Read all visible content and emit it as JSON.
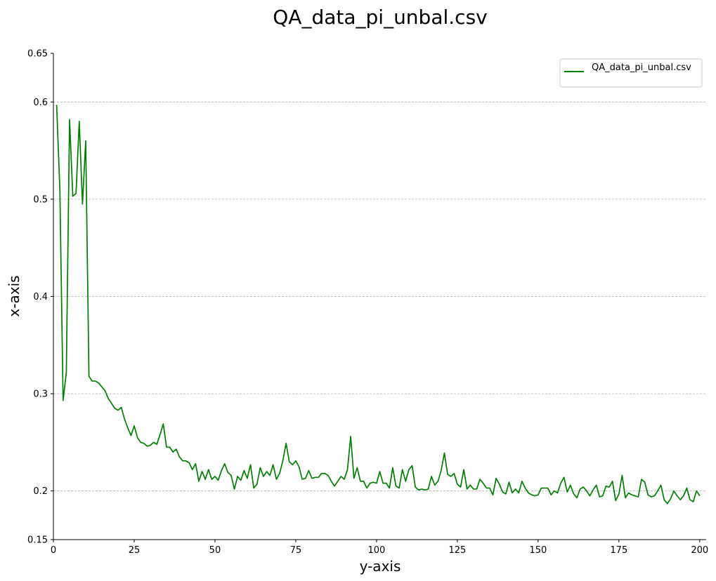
{
  "chart_data": {
    "type": "line",
    "title": "QA_data_pi_unbal.csv",
    "xlabel": "y-axis",
    "ylabel": "x-axis",
    "xlim": [
      0,
      202
    ],
    "ylim": [
      0.15,
      0.65
    ],
    "x_ticks": [
      0,
      25,
      50,
      75,
      100,
      125,
      150,
      175,
      200
    ],
    "x_tick_labels": [
      "0",
      "25",
      "50",
      "75",
      "100",
      "125",
      "150",
      "175",
      "200"
    ],
    "y_ticks": [
      0.15,
      0.2,
      0.3,
      0.4,
      0.5,
      0.6,
      0.65
    ],
    "y_tick_labels": [
      "0.15",
      "0.2",
      "0.3",
      "0.4",
      "0.5",
      "0.6",
      "0.65"
    ],
    "grid": "horizontal-dashed",
    "legend_position": "top-right",
    "colors": {
      "line": "#008000",
      "grid": "#b0b0b0",
      "axis": "#000000"
    },
    "series": [
      {
        "name": "QA_data_pi_unbal.csv",
        "x": [
          1,
          2,
          3,
          4,
          5,
          6,
          7,
          8,
          9,
          10,
          11,
          12,
          13,
          14,
          15,
          16,
          17,
          18,
          19,
          20,
          21,
          22,
          23,
          24,
          25,
          26,
          27,
          28,
          29,
          30,
          31,
          32,
          33,
          34,
          35,
          36,
          37,
          38,
          39,
          40,
          41,
          42,
          43,
          44,
          45,
          46,
          47,
          48,
          49,
          50,
          51,
          52,
          53,
          54,
          55,
          56,
          57,
          58,
          59,
          60,
          61,
          62,
          63,
          64,
          65,
          66,
          67,
          68,
          69,
          70,
          71,
          72,
          73,
          74,
          75,
          76,
          77,
          78,
          79,
          80,
          81,
          82,
          83,
          84,
          85,
          86,
          87,
          88,
          89,
          90,
          91,
          92,
          93,
          94,
          95,
          96,
          97,
          98,
          99,
          100,
          101,
          102,
          103,
          104,
          105,
          106,
          107,
          108,
          109,
          110,
          111,
          112,
          113,
          114,
          115,
          116,
          117,
          118,
          119,
          120,
          121,
          122,
          123,
          124,
          125,
          126,
          127,
          128,
          129,
          130,
          131,
          132,
          133,
          134,
          135,
          136,
          137,
          138,
          139,
          140,
          141,
          142,
          143,
          144,
          145,
          146,
          147,
          148,
          149,
          150,
          151,
          152,
          153,
          154,
          155,
          156,
          157,
          158,
          159,
          160,
          161,
          162,
          163,
          164,
          165,
          166,
          167,
          168,
          169,
          170,
          171,
          172,
          173,
          174,
          175,
          176,
          177,
          178,
          179,
          180,
          181,
          182,
          183,
          184,
          185,
          186,
          187,
          188,
          189,
          190,
          191,
          192,
          193,
          194,
          195,
          196,
          197,
          198,
          199,
          200
        ],
        "values": [
          0.597,
          0.51,
          0.293,
          0.322,
          0.582,
          0.503,
          0.506,
          0.58,
          0.495,
          0.56,
          0.318,
          0.313,
          0.313,
          0.311,
          0.307,
          0.303,
          0.295,
          0.29,
          0.285,
          0.283,
          0.286,
          0.274,
          0.265,
          0.257,
          0.267,
          0.255,
          0.25,
          0.249,
          0.246,
          0.247,
          0.25,
          0.248,
          0.258,
          0.269,
          0.245,
          0.245,
          0.24,
          0.243,
          0.235,
          0.231,
          0.231,
          0.229,
          0.222,
          0.228,
          0.21,
          0.22,
          0.212,
          0.222,
          0.212,
          0.215,
          0.211,
          0.221,
          0.228,
          0.219,
          0.216,
          0.202,
          0.215,
          0.211,
          0.221,
          0.213,
          0.227,
          0.203,
          0.207,
          0.224,
          0.215,
          0.22,
          0.216,
          0.227,
          0.212,
          0.218,
          0.231,
          0.249,
          0.23,
          0.227,
          0.231,
          0.225,
          0.212,
          0.213,
          0.221,
          0.213,
          0.214,
          0.214,
          0.218,
          0.218,
          0.216,
          0.21,
          0.205,
          0.21,
          0.215,
          0.212,
          0.222,
          0.256,
          0.213,
          0.224,
          0.21,
          0.21,
          0.203,
          0.208,
          0.209,
          0.208,
          0.22,
          0.208,
          0.208,
          0.203,
          0.224,
          0.205,
          0.203,
          0.222,
          0.21,
          0.222,
          0.226,
          0.204,
          0.201,
          0.202,
          0.201,
          0.202,
          0.215,
          0.206,
          0.21,
          0.221,
          0.239,
          0.217,
          0.215,
          0.218,
          0.207,
          0.204,
          0.222,
          0.202,
          0.206,
          0.202,
          0.202,
          0.212,
          0.208,
          0.203,
          0.203,
          0.196,
          0.213,
          0.207,
          0.199,
          0.197,
          0.209,
          0.198,
          0.202,
          0.198,
          0.21,
          0.203,
          0.198,
          0.196,
          0.195,
          0.196,
          0.203,
          0.203,
          0.203,
          0.196,
          0.2,
          0.198,
          0.208,
          0.214,
          0.199,
          0.206,
          0.197,
          0.193,
          0.202,
          0.204,
          0.2,
          0.195,
          0.201,
          0.206,
          0.194,
          0.195,
          0.205,
          0.204,
          0.21,
          0.19,
          0.197,
          0.216,
          0.193,
          0.198,
          0.196,
          0.195,
          0.194,
          0.212,
          0.209,
          0.196,
          0.194,
          0.195,
          0.2,
          0.206,
          0.191,
          0.187,
          0.192,
          0.2,
          0.195,
          0.191,
          0.195,
          0.203,
          0.191,
          0.189,
          0.2,
          0.195
        ]
      }
    ]
  }
}
